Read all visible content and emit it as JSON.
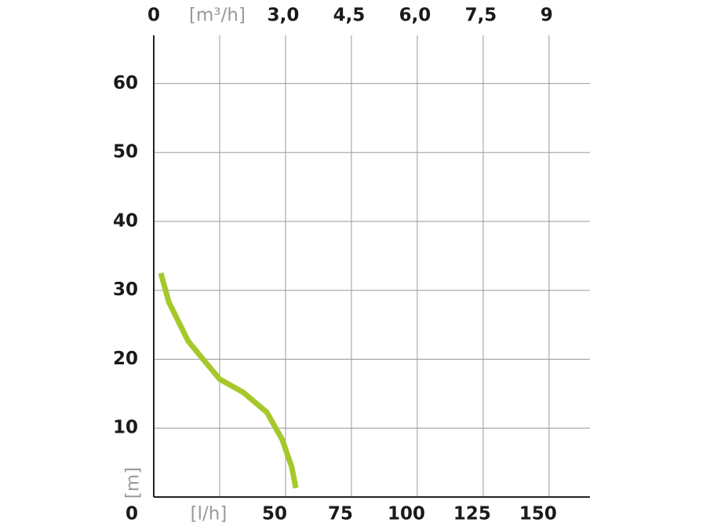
{
  "chart_data": {
    "type": "line",
    "y_label": "[m]",
    "x": [
      2.7,
      5.7,
      13.1,
      25,
      33.9,
      42.9,
      48.8,
      52.4,
      53.9
    ],
    "series": [
      {
        "color": "#a6c82b",
        "values": [
          32.5,
          28.3,
          22.6,
          17.1,
          15.2,
          12.3,
          8.3,
          4.3,
          1.3
        ]
      }
    ],
    "xlim": [
      0,
      165.5
    ],
    "xticks": [
      0,
      {
        "value": 25,
        "label": "[l/h]"
      },
      50,
      75,
      100,
      125,
      150
    ],
    "x2lim": [
      0,
      9.93
    ],
    "x2ticks": [
      0,
      {
        "value": 1.5,
        "label": "[m³/h]"
      },
      {
        "value": 3,
        "label": "3,0"
      },
      {
        "value": 4.5,
        "label": "4,5"
      },
      {
        "value": 6,
        "label": "6,0"
      },
      {
        "value": 7.5,
        "label": "7,5"
      },
      9
    ],
    "ylim": [
      0,
      67
    ],
    "yticks": [
      0,
      10,
      20,
      30,
      40,
      50,
      60
    ],
    "grid": true
  }
}
